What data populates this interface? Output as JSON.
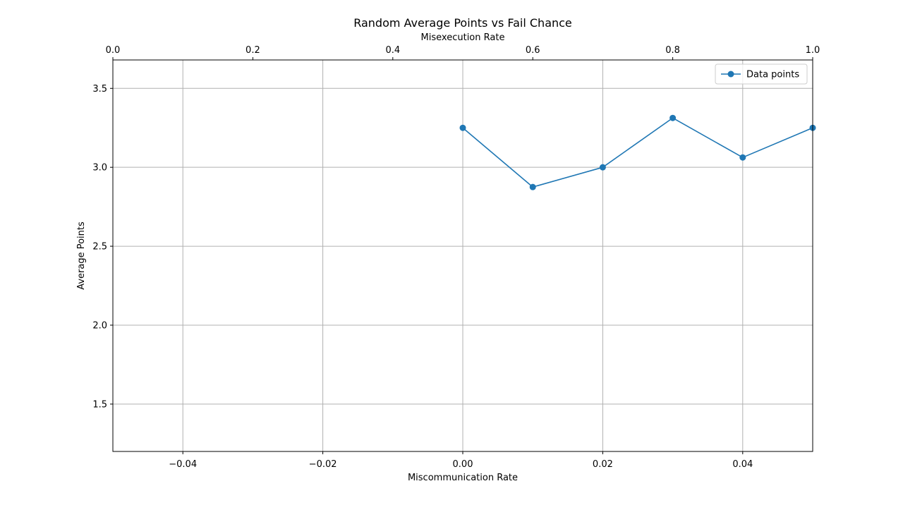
{
  "chart_data": {
    "type": "line",
    "title": "Random Average Points vs Fail Chance",
    "xlabel": "Miscommunication Rate",
    "ylabel": "Average Points",
    "top_xlabel": "Misexecution Rate",
    "xlim": [
      -0.05,
      0.05
    ],
    "ylim": [
      1.2,
      3.68
    ],
    "top_xlim": [
      0.0,
      1.0
    ],
    "x_ticks": [
      -0.04,
      -0.02,
      0.0,
      0.02,
      0.04
    ],
    "x_tick_labels": [
      "−0.04",
      "−0.02",
      "0.00",
      "0.02",
      "0.04"
    ],
    "y_ticks": [
      1.5,
      2.0,
      2.5,
      3.0,
      3.5
    ],
    "y_tick_labels": [
      "1.5",
      "2.0",
      "2.5",
      "3.0",
      "3.5"
    ],
    "top_x_ticks": [
      0.0,
      0.2,
      0.4,
      0.6,
      0.8,
      1.0
    ],
    "top_x_tick_labels": [
      "0.0",
      "0.2",
      "0.4",
      "0.6",
      "0.8",
      "1.0"
    ],
    "grid": true,
    "legend_position": "top-right",
    "series": [
      {
        "name": "Data points",
        "color": "#1f77b4",
        "marker": "circle",
        "x": [
          0.0,
          0.01,
          0.02,
          0.03,
          0.04,
          0.05
        ],
        "y": [
          3.25,
          2.875,
          3.0,
          3.3125,
          3.0625,
          3.25
        ]
      }
    ]
  }
}
